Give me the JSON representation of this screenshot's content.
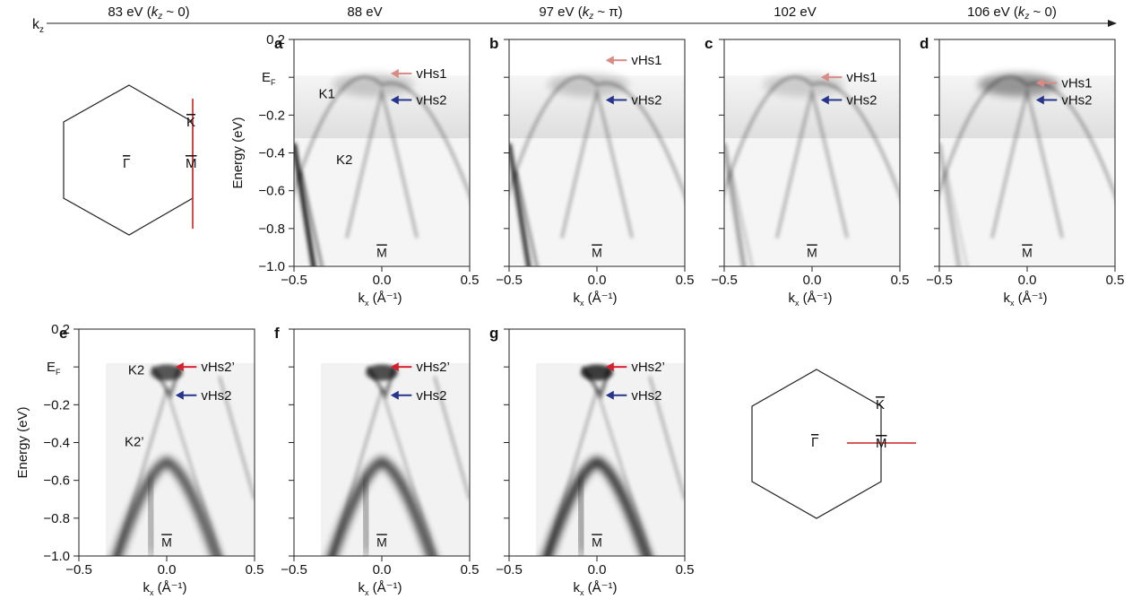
{
  "kz_axis": {
    "label": "k",
    "sub": "z",
    "photon_energies": [
      {
        "text": "83 eV (",
        "kz": "k",
        "kz_sub": "z",
        "tail": " ~ 0)"
      },
      {
        "text": "88 eV"
      },
      {
        "text": "97 eV (",
        "kz": "k",
        "kz_sub": "z",
        "tail": " ~ π)"
      },
      {
        "text": "102 eV"
      },
      {
        "text": "106 eV (",
        "kz": "k",
        "kz_sub": "z",
        "tail": " ~ 0)"
      }
    ]
  },
  "colors": {
    "arrow_vhs1": "#d98b84",
    "arrow_vhs2": "#27368c",
    "arrow_vhs2p": "#d62031",
    "cut_line": "#cc2222",
    "band_dark": "#000000"
  },
  "axes": {
    "ylabel": "Energy (eV)",
    "ef_label": "E",
    "ef_sub": "F",
    "xlabel_main": "k",
    "xlabel_sub": "x",
    "xlabel_unit": " (Å⁻¹)",
    "x_ticks": [
      "−0.5",
      "0.0",
      "0.5"
    ],
    "y_ticks": [
      "0.2",
      "−0.2",
      "−0.4",
      "−0.6",
      "−0.8",
      "−1.0"
    ],
    "x_range": [
      -0.5,
      0.5
    ],
    "y_range": [
      -1.0,
      0.2
    ]
  },
  "panels": [
    {
      "letter": "a",
      "point": "M",
      "labels": {
        "k1": "K1",
        "k2": "K2"
      },
      "arrows": [
        {
          "text": "vHs1",
          "color": "vhs1",
          "energy": 0.02
        },
        {
          "text": "vHs2",
          "color": "vhs2",
          "energy": -0.12
        }
      ]
    },
    {
      "letter": "b",
      "point": "M",
      "arrows": [
        {
          "text": "vHs1",
          "color": "vhs1",
          "energy": 0.09
        },
        {
          "text": "vHs2",
          "color": "vhs2",
          "energy": -0.12
        }
      ]
    },
    {
      "letter": "c",
      "point": "M",
      "arrows": [
        {
          "text": "vHs1",
          "color": "vhs1",
          "energy": 0.0
        },
        {
          "text": "vHs2",
          "color": "vhs2",
          "energy": -0.12
        }
      ]
    },
    {
      "letter": "d",
      "point": "M",
      "arrows": [
        {
          "text": "vHs1",
          "color": "vhs1",
          "energy": -0.03
        },
        {
          "text": "vHs2",
          "color": "vhs2",
          "energy": -0.12
        }
      ]
    },
    {
      "letter": "e",
      "point": "M",
      "labels": {
        "k2": "K2",
        "k2p": "K2’"
      },
      "arrows": [
        {
          "text": "vHs2’",
          "color": "vhs2p",
          "energy": 0.0
        },
        {
          "text": "vHs2",
          "color": "vhs2",
          "energy": -0.15
        }
      ]
    },
    {
      "letter": "f",
      "point": "M",
      "arrows": [
        {
          "text": "vHs2’",
          "color": "vhs2p",
          "energy": 0.0
        },
        {
          "text": "vHs2",
          "color": "vhs2",
          "energy": -0.15
        }
      ]
    },
    {
      "letter": "g",
      "point": "M",
      "arrows": [
        {
          "text": "vHs2’",
          "color": "vhs2p",
          "energy": 0.0
        },
        {
          "text": "vHs2",
          "color": "vhs2",
          "energy": -0.15
        }
      ]
    }
  ],
  "bz_top": {
    "gamma": "Γ",
    "k": "K",
    "m": "M"
  },
  "bz_bottom": {
    "gamma": "Γ",
    "k": "K",
    "m": "M"
  }
}
